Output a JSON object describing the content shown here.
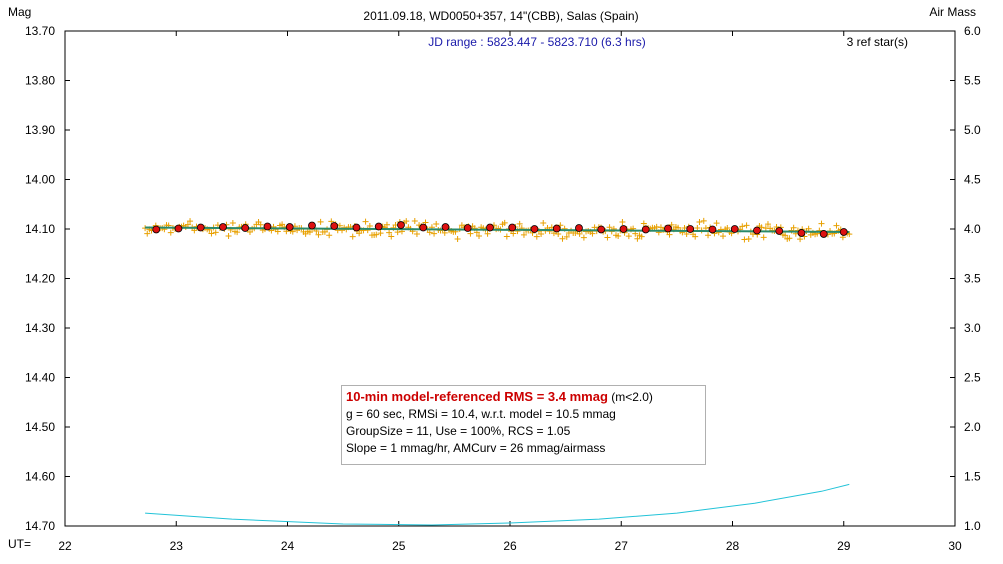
{
  "chart_data": {
    "type": "scatter",
    "title": "2011.09.18, WD0050+357, 14\"(CBB), Salas (Spain)",
    "subtitle": "JD range : 5823.447 - 5823.710 (6.3 hrs)",
    "ref_stars": "3 ref star(s)",
    "ylabel_left": "Mag",
    "ylabel_right": "Air Mass",
    "xlabel": "UT=",
    "xlim": [
      22,
      30
    ],
    "ylim_left": [
      13.7,
      14.7
    ],
    "ylim_right": [
      1.0,
      6.0
    ],
    "y_inverted": true,
    "x_ticks": [
      "22",
      "23",
      "24",
      "25",
      "26",
      "27",
      "28",
      "29",
      "30"
    ],
    "y_left_ticks": [
      "13.70",
      "13.80",
      "13.90",
      "14.00",
      "14.10",
      "14.20",
      "14.30",
      "14.40",
      "14.50",
      "14.60",
      "14.70"
    ],
    "y_right_ticks": [
      "6.0",
      "5.5",
      "5.0",
      "4.5",
      "4.0",
      "3.5",
      "3.0",
      "2.5",
      "2.0",
      "1.5",
      "1.0"
    ],
    "series": [
      {
        "kind": "points",
        "marker": "plus",
        "color": "#e8a000",
        "x_range": [
          22.72,
          29.05
        ],
        "count": 330,
        "center_mag": 14.1,
        "scatter_mag": 0.012
      },
      {
        "kind": "averages",
        "marker": "circle",
        "color": "#dd1111",
        "x": [
          22.82,
          23.02,
          23.22,
          23.42,
          23.62,
          23.82,
          24.02,
          24.22,
          24.42,
          24.62,
          24.82,
          25.02,
          25.22,
          25.42,
          25.62,
          25.82,
          26.02,
          26.22,
          26.42,
          26.62,
          26.82,
          27.02,
          27.22,
          27.42,
          27.62,
          27.82,
          28.02,
          28.22,
          28.42,
          28.62,
          28.82,
          29.0
        ],
        "y": [
          14.101,
          14.099,
          14.097,
          14.096,
          14.098,
          14.095,
          14.096,
          14.093,
          14.094,
          14.097,
          14.095,
          14.092,
          14.097,
          14.096,
          14.098,
          14.097,
          14.097,
          14.1,
          14.099,
          14.098,
          14.101,
          14.1,
          14.101,
          14.099,
          14.1,
          14.101,
          14.1,
          14.103,
          14.104,
          14.108,
          14.11,
          14.106
        ]
      },
      {
        "kind": "model",
        "color": "#2a8a6a",
        "x": [
          22.72,
          29.05
        ],
        "y": [
          14.097,
          14.106
        ]
      },
      {
        "kind": "airmass",
        "axis": "right",
        "color": "#22c3d8",
        "x": [
          22.72,
          23.5,
          24.5,
          25.3,
          26.0,
          26.8,
          27.5,
          28.2,
          28.8,
          29.05
        ],
        "y": [
          1.13,
          1.07,
          1.02,
          1.01,
          1.03,
          1.07,
          1.13,
          1.23,
          1.35,
          1.42
        ]
      }
    ],
    "grid": false
  },
  "stats": {
    "rms_label": "10-min model-referenced RMS = 3.4 mmag",
    "rms_suffix": " (m<2.0)",
    "line2": "g = 60 sec, RMSi = 10.4, w.r.t. model = 10.5 mmag",
    "line3": "GroupSize = 11, Use = 100%, RCS = 1.05",
    "line4": "Slope = 1 mmag/hr, AMCurv = 26 mmag/airmass"
  },
  "colors": {
    "title": "#000000",
    "subtitle": "#1a1aaa",
    "points": "#e8a000",
    "averages": "#dd1111",
    "model": "#2a8a6a",
    "airmass": "#22c3d8"
  }
}
